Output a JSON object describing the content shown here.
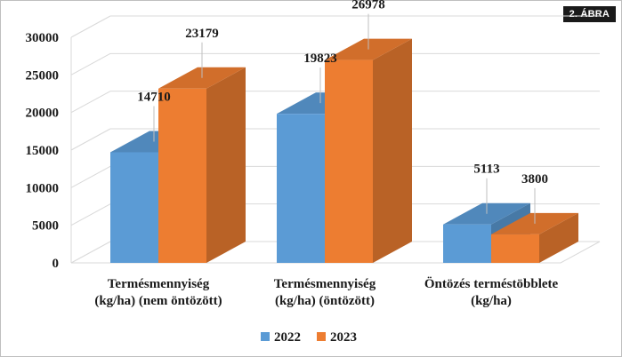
{
  "figure_badge": "2. ÁBRA",
  "chart_data": {
    "type": "bar",
    "categories": [
      [
        "Termésmennyiség",
        "(kg/ha) (nem öntözött)"
      ],
      [
        "Termésmennyiség",
        "(kg/ha) (öntözött)"
      ],
      [
        "Öntözés terméstöbblete",
        "(kg/ha)"
      ]
    ],
    "series": [
      {
        "name": "2022",
        "values": [
          14710,
          19823,
          5113
        ],
        "color": "#5b9bd5"
      },
      {
        "name": "2023",
        "values": [
          23179,
          26978,
          3800
        ],
        "color": "#ed7d31"
      }
    ],
    "ylim": [
      0,
      30000
    ],
    "yticks": [
      0,
      5000,
      10000,
      15000,
      20000,
      25000,
      30000
    ],
    "grid": true,
    "legend_position": "bottom",
    "style": "3d"
  }
}
